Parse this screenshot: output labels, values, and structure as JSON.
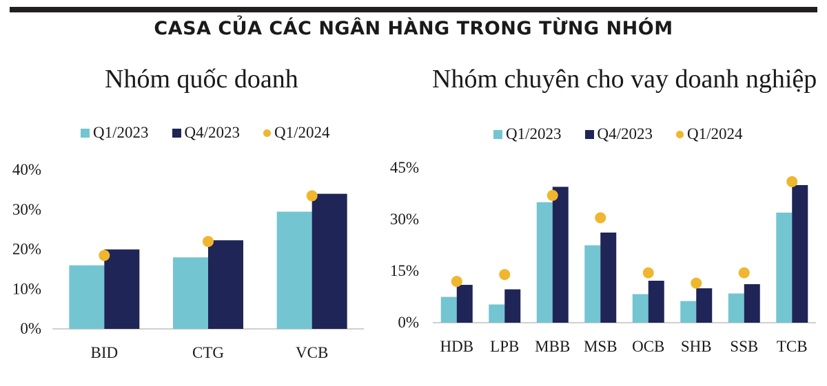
{
  "header": {
    "title": "CASA CỦA CÁC NGÂN HÀNG TRONG TỪNG NHÓM"
  },
  "colors": {
    "q1_2023": "#73c5d2",
    "q4_2023": "#1f2556",
    "q1_2024": "#f0b62e"
  },
  "chart_data": [
    {
      "type": "bar",
      "title": "Nhóm quốc doanh",
      "categories": [
        "BID",
        "CTG",
        "VCB"
      ],
      "series": [
        {
          "name": "Q1/2023",
          "type": "bar",
          "values": [
            16,
            18,
            29.5
          ]
        },
        {
          "name": "Q4/2023",
          "type": "bar",
          "values": [
            20,
            22.3,
            34
          ]
        },
        {
          "name": "Q1/2024",
          "type": "dot",
          "values": [
            18.5,
            22,
            33.5
          ]
        }
      ],
      "yticks": [
        "0%",
        "10%",
        "20%",
        "30%",
        "40%"
      ],
      "ytick_values": [
        0,
        10,
        20,
        30,
        40
      ],
      "ylim": [
        0,
        40
      ],
      "grid": false,
      "legend": "top"
    },
    {
      "type": "bar",
      "title": "Nhóm chuyên cho vay doanh nghiệp",
      "categories": [
        "HDB",
        "LPB",
        "MBB",
        "MSB",
        "OCB",
        "SHB",
        "SSB",
        "TCB"
      ],
      "series": [
        {
          "name": "Q1/2023",
          "type": "bar",
          "values": [
            7.5,
            5.3,
            35,
            22.5,
            8.3,
            6.3,
            8.5,
            32
          ]
        },
        {
          "name": "Q4/2023",
          "type": "bar",
          "values": [
            11,
            9.7,
            39.5,
            26.2,
            12.2,
            10,
            11.2,
            40
          ]
        },
        {
          "name": "Q1/2024",
          "type": "dot",
          "values": [
            12,
            14,
            37,
            30.5,
            14.5,
            11.5,
            14.5,
            41
          ]
        }
      ],
      "yticks": [
        "0%",
        "15%",
        "30%",
        "45%"
      ],
      "ytick_values": [
        0,
        15,
        30,
        45
      ],
      "ylim": [
        0,
        45
      ],
      "grid": false,
      "legend": "top"
    }
  ]
}
